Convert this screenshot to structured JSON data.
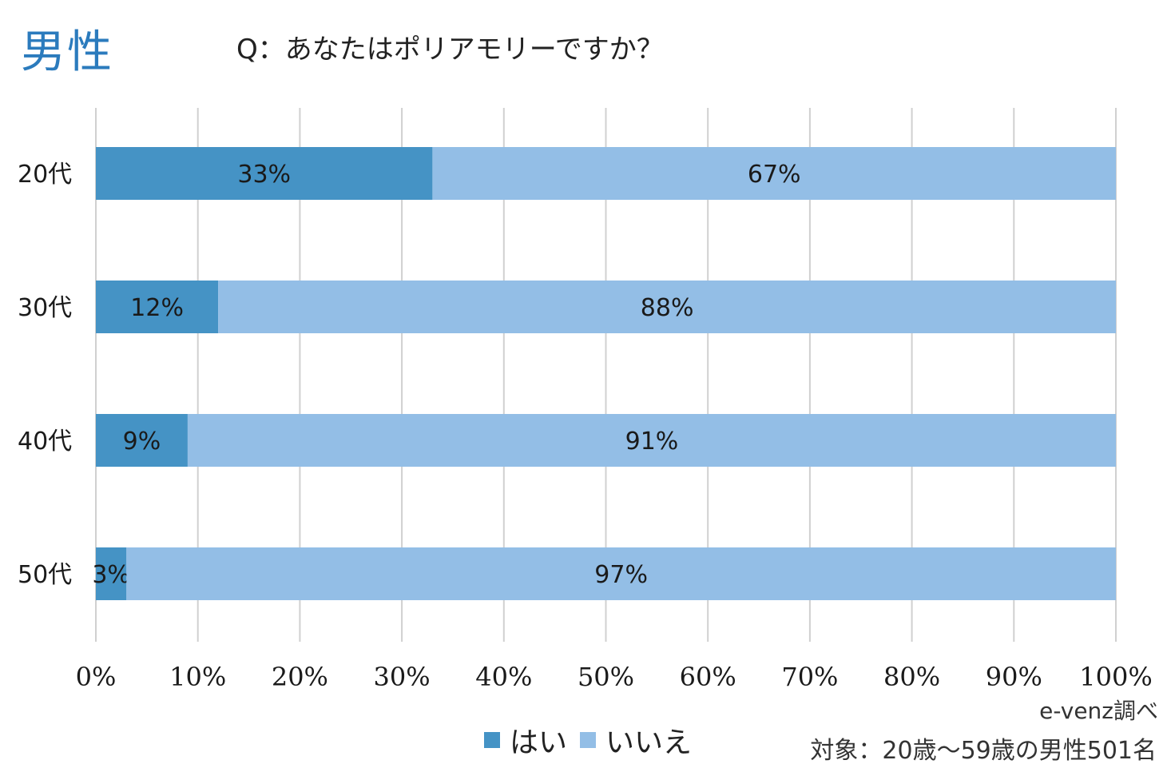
{
  "header": {
    "gender": "男性",
    "question": "Q：あなたはポリアモリーですか？"
  },
  "chart_data": {
    "type": "bar",
    "orientation": "horizontal",
    "stacked": true,
    "categories": [
      "20代",
      "30代",
      "40代",
      "50代"
    ],
    "series": [
      {
        "name": "はい",
        "values": [
          33,
          12,
          9,
          3
        ],
        "color": "#4593c5"
      },
      {
        "name": "いいえ",
        "values": [
          67,
          88,
          91,
          97
        ],
        "color": "#93bee6"
      }
    ],
    "data_labels": [
      [
        "33%",
        "12%",
        "9%",
        "3%"
      ],
      [
        "67%",
        "88%",
        "91%",
        "97%"
      ]
    ],
    "xlim": [
      0,
      100
    ],
    "xticks": [
      0,
      10,
      20,
      30,
      40,
      50,
      60,
      70,
      80,
      90,
      100
    ],
    "xtick_labels": [
      "0%",
      "10%",
      "20%",
      "30%",
      "40%",
      "50%",
      "60%",
      "70%",
      "80%",
      "90%",
      "100%"
    ],
    "grid": true,
    "legend_position": "bottom"
  },
  "footer": {
    "source": "e-venz調べ",
    "target": "対象：20歳～59歳の男性501名"
  }
}
